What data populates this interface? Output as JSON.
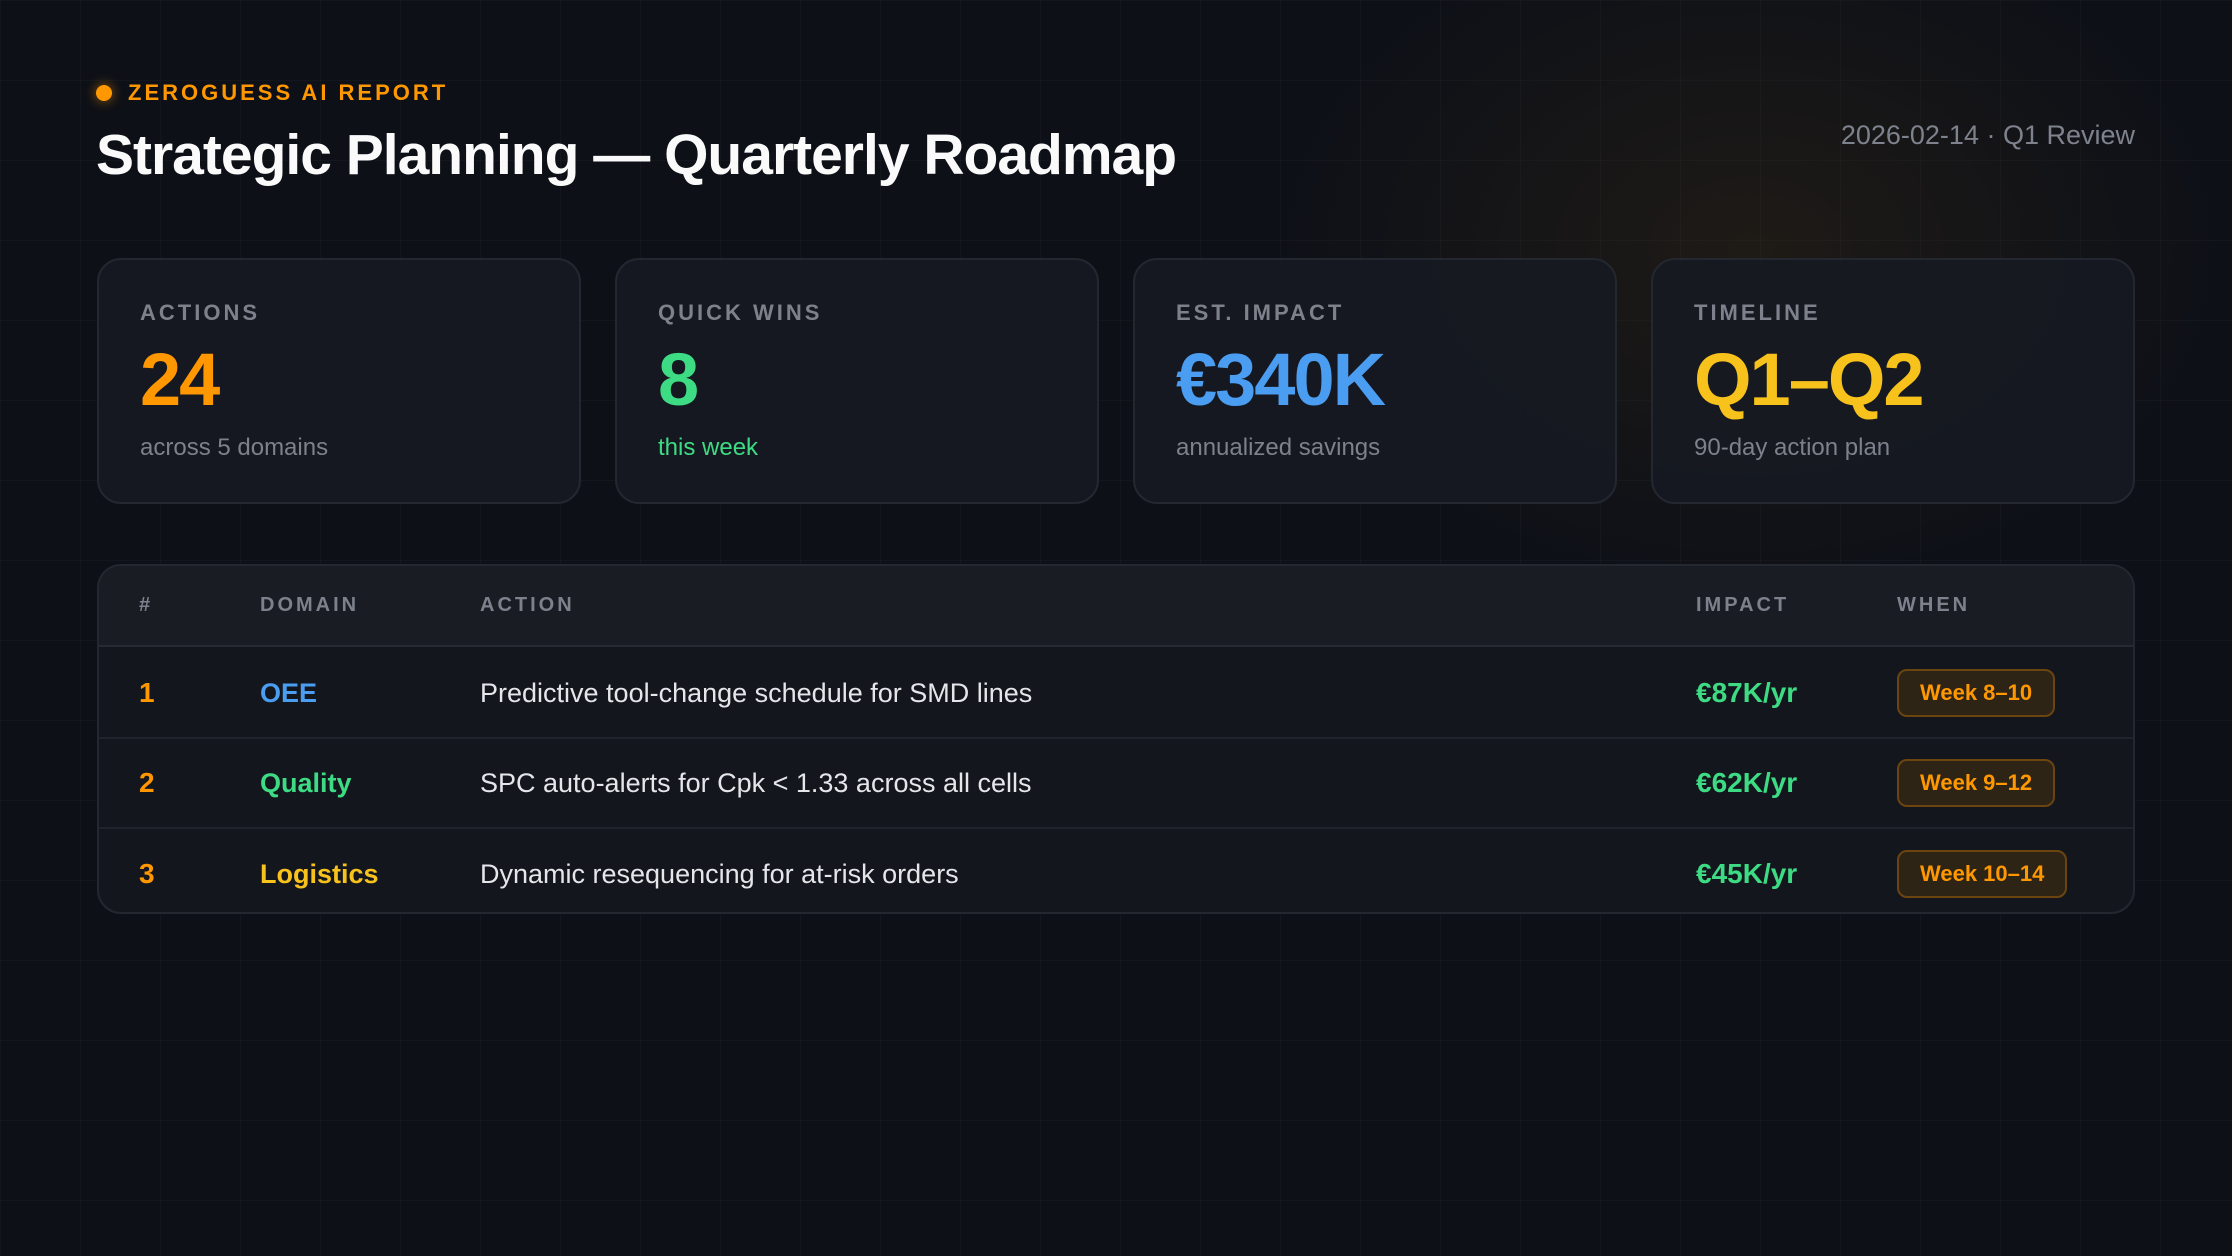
{
  "header": {
    "eyebrow": "ZEROGUESS AI REPORT",
    "title": "Strategic Planning — Quarterly Roadmap",
    "date": "2026-02-14 · Q1 Review"
  },
  "kpis": [
    {
      "label": "ACTIONS",
      "value": "24",
      "sub": "across 5 domains",
      "color": "#ff9800",
      "sub_color": "#7c818c"
    },
    {
      "label": "QUICK WINS",
      "value": "8",
      "sub": "this week",
      "color": "#3ddc84",
      "sub_color": "#3ddc84"
    },
    {
      "label": "EST. IMPACT",
      "value": "€340K",
      "sub": "annualized savings",
      "color": "#4a9df0",
      "sub_color": "#7c818c"
    },
    {
      "label": "TIMELINE",
      "value": "Q1–Q2",
      "sub": "90-day action plan",
      "color": "#f8c21c",
      "sub_color": "#7c818c"
    }
  ],
  "table": {
    "columns": [
      "#",
      "DOMAIN",
      "ACTION",
      "IMPACT",
      "WHEN"
    ],
    "rows": [
      {
        "num": "1",
        "domain": "OEE",
        "domain_color": "#4a9df0",
        "action": "Predictive tool-change schedule for SMD lines",
        "impact": "€87K/yr",
        "when": "Week 8–10"
      },
      {
        "num": "2",
        "domain": "Quality",
        "domain_color": "#3ddc84",
        "action": "SPC auto-alerts for Cpk < 1.33 across all cells",
        "impact": "€62K/yr",
        "when": "Week 9–12"
      },
      {
        "num": "3",
        "domain": "Logistics",
        "domain_color": "#f8c21c",
        "action": "Dynamic resequencing for at-risk orders",
        "impact": "€45K/yr",
        "when": "Week 10–14"
      }
    ]
  }
}
